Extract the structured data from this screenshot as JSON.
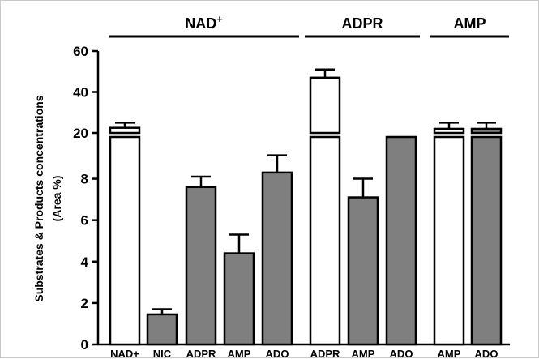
{
  "chart_data": {
    "type": "bar",
    "ylabel_lines": [
      "Substrates & Products concentrations",
      "(Area %)"
    ],
    "y_axis": {
      "broken": true,
      "lower_ticks": [
        0,
        2,
        4,
        6,
        8
      ],
      "upper_ticks": [
        20,
        40,
        60
      ],
      "tick_labels": [
        "0",
        "2",
        "4",
        "6",
        "8",
        "20",
        "40",
        "60"
      ],
      "lower_range": [
        0,
        9
      ],
      "upper_range": [
        20,
        60
      ]
    },
    "groups": [
      {
        "label": "NAD+",
        "label_base": "NAD",
        "label_sup": "+"
      },
      {
        "label": "ADPR"
      },
      {
        "label": "AMP"
      }
    ],
    "categories": [
      "NAD+",
      "NIC",
      "ADPR",
      "AMP",
      "ADO",
      "ADPR",
      "AMP",
      "ADO",
      "AMP",
      "ADO"
    ],
    "bars": [
      {
        "group": 0,
        "category": "NAD+",
        "value": 22.5,
        "error": 2.5,
        "fill": "white"
      },
      {
        "group": 0,
        "category": "NIC",
        "value": 1.45,
        "error": 0.25,
        "fill": "gray"
      },
      {
        "group": 0,
        "category": "ADPR",
        "value": 7.6,
        "error": 0.5,
        "fill": "gray"
      },
      {
        "group": 0,
        "category": "AMP",
        "value": 4.4,
        "error": 0.9,
        "fill": "gray"
      },
      {
        "group": 0,
        "category": "ADO",
        "value": 8.3,
        "error": 0.75,
        "fill": "gray"
      },
      {
        "group": 1,
        "category": "ADPR",
        "value": 47,
        "error": 4,
        "fill": "white"
      },
      {
        "group": 1,
        "category": "AMP",
        "value": 7.1,
        "error": 0.9,
        "fill": "gray"
      },
      {
        "group": 1,
        "category": "ADO",
        "value": 9.3,
        "error": 0.45,
        "fill": "gray"
      },
      {
        "group": 2,
        "category": "AMP",
        "value": 22,
        "error": 3,
        "fill": "white"
      },
      {
        "group": 2,
        "category": "ADO",
        "value": 22,
        "error": 3,
        "fill": "gray"
      }
    ],
    "colors": {
      "gray": "#7f7f7f",
      "white": "#ffffff",
      "stroke": "#000000"
    }
  }
}
